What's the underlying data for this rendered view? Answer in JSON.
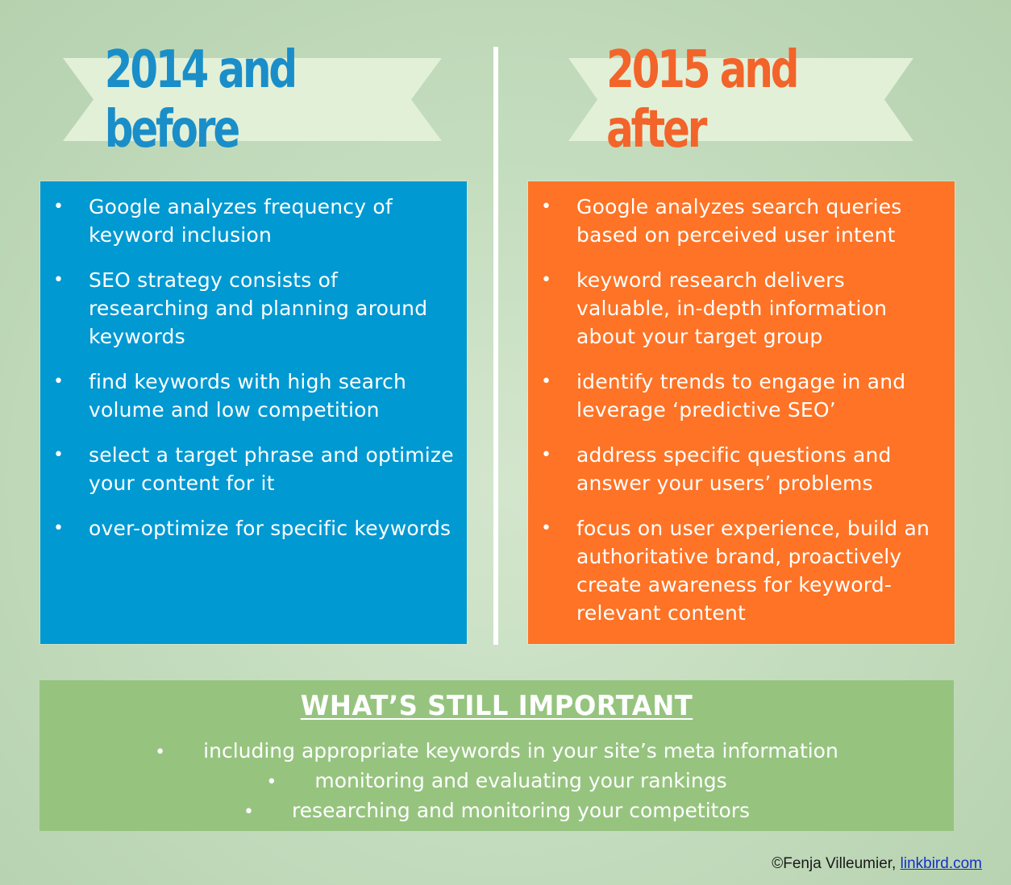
{
  "left": {
    "title": "2014 and before",
    "items": [
      {
        "bullet": "•",
        "text": "Google analyzes frequency of keyword inclusion"
      },
      {
        "bullet": "•",
        "text": "SEO strategy consists of researching and planning around keywords"
      },
      {
        "bullet": "•",
        "text": "find keywords with high search volume and low competition"
      },
      {
        "bullet": "•",
        "text": "select a target phrase and optimize your content for it"
      },
      {
        "bullet": "•",
        "text": "over-optimize for specific keywords"
      }
    ]
  },
  "right": {
    "title": "2015 and after",
    "items": [
      {
        "bullet": "•",
        "text": "Google analyzes search queries based on perceived user intent"
      },
      {
        "bullet": "•",
        "text": "keyword research delivers valuable, in-depth information about your target group"
      },
      {
        "bullet": "•",
        "text": "identify trends to engage in and leverage  ‘predictive SEO’"
      },
      {
        "bullet": "•",
        "text": "address specific questions and answer your users’ problems"
      },
      {
        "bullet": "•",
        "text": "focus on user experience, build an authoritative brand, proactively create awareness for keyword-relevant content"
      }
    ]
  },
  "still_important": {
    "heading": "WHAT’S STILL IMPORTANT",
    "items": [
      {
        "bullet": "•",
        "text": "including appropriate keywords in your site’s meta information"
      },
      {
        "bullet": "•",
        "text": "monitoring and evaluating your rankings"
      },
      {
        "bullet": "•",
        "text": "researching and monitoring your competitors"
      }
    ]
  },
  "credit": {
    "prefix": "©Fenja Villeumier, ",
    "link_text": "linkbird.com"
  },
  "colors": {
    "left_panel": "#0099d2",
    "right_panel": "#fe7325",
    "still_panel": "#96c47f",
    "ribbon": "#e2f0d8",
    "left_title": "#1a8ec8",
    "right_title": "#f2642a"
  }
}
